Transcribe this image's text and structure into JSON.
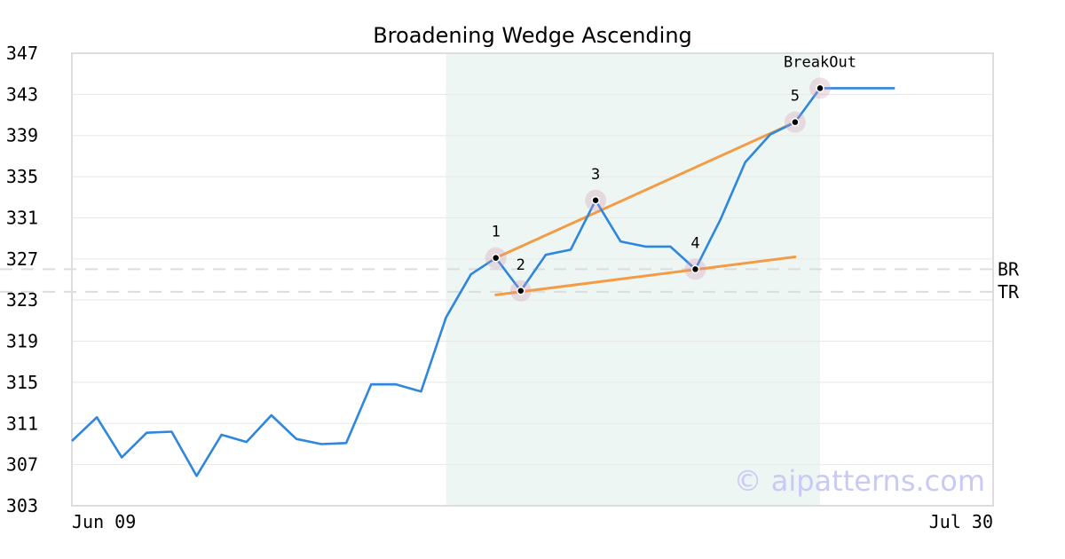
{
  "chart_data": {
    "type": "line",
    "title": "Broadening Wedge Ascending",
    "ylim": [
      303,
      347
    ],
    "yticks": [
      303,
      307,
      311,
      315,
      319,
      323,
      327,
      331,
      335,
      339,
      343,
      347
    ],
    "x_tick_labels": [
      "Jun 09",
      "Jul 30"
    ],
    "grid": true,
    "series": [
      {
        "color": "#2e86de",
        "values": [
          309.3,
          311.6,
          307.7,
          310.1,
          310.2,
          305.9,
          309.9,
          309.2,
          311.8,
          309.5,
          309.0,
          309.1,
          314.8,
          314.8,
          314.1,
          321.3,
          325.5,
          327.1,
          323.9,
          327.4,
          327.9,
          332.7,
          328.7,
          328.2,
          328.2,
          326.0,
          330.8,
          336.4,
          339.1,
          340.3,
          343.6,
          343.6,
          343.6,
          343.6
        ]
      }
    ],
    "highlight_region": {
      "start_index": 15,
      "end_index": 30,
      "color": "#eef6f3"
    },
    "pattern_points": [
      {
        "label": "1",
        "index": 17,
        "value": 327.1
      },
      {
        "label": "2",
        "index": 18,
        "value": 323.9
      },
      {
        "label": "3",
        "index": 21,
        "value": 332.7
      },
      {
        "label": "4",
        "index": 25,
        "value": 326.0
      },
      {
        "label": "5",
        "index": 29,
        "value": 340.3
      },
      {
        "label": "BreakOut",
        "index": 30,
        "value": 343.6
      }
    ],
    "trend_lines": [
      {
        "start_index": 17,
        "start_value": 327.1,
        "end_index": 29,
        "end_value": 340.3,
        "color": "#f39c45"
      },
      {
        "start_index": 17,
        "start_value": 323.5,
        "end_index": 29,
        "end_value": 327.2,
        "color": "#f39c45"
      }
    ],
    "reference_lines": [
      {
        "label": "BR",
        "value": 326.0
      },
      {
        "label": "TR",
        "value": 323.8
      }
    ],
    "watermark": "© aipatterns.com"
  }
}
